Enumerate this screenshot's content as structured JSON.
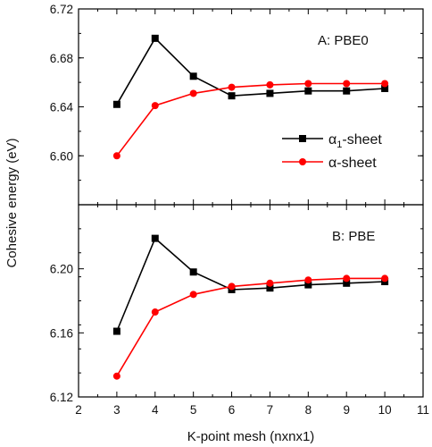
{
  "chart_data": [
    {
      "type": "line",
      "panel_label": "A: PBE0",
      "ylabel": "Cohesive energy (eV)",
      "xlabel": "K-point mesh (nxnx1)",
      "xlim": [
        2,
        11
      ],
      "ylim": [
        6.56,
        6.72
      ],
      "y_ticks": [
        "6.60",
        "6.64",
        "6.68",
        "6.72"
      ],
      "x": [
        3,
        4,
        5,
        6,
        7,
        8,
        9,
        10
      ],
      "series": [
        {
          "name": "α1-sheet",
          "name_base": "α",
          "name_sub": "1",
          "name_suffix": "-sheet",
          "color": "#000000",
          "marker": "square",
          "values": [
            6.642,
            6.696,
            6.665,
            6.649,
            6.651,
            6.653,
            6.653,
            6.655
          ]
        },
        {
          "name": "α-sheet",
          "name_base": "α",
          "name_sub": "",
          "name_suffix": "-sheet",
          "color": "#ff0000",
          "marker": "circle",
          "values": [
            6.6,
            6.641,
            6.651,
            6.656,
            6.658,
            6.659,
            6.659,
            6.659
          ]
        }
      ],
      "legend": "right"
    },
    {
      "type": "line",
      "panel_label": "B: PBE",
      "xlabel": "K-point mesh (nxnx1)",
      "xlim": [
        2,
        11
      ],
      "ylim": [
        6.12,
        6.24
      ],
      "y_ticks": [
        "6.12",
        "6.16",
        "6.20"
      ],
      "x_ticks": [
        "2",
        "3",
        "4",
        "5",
        "6",
        "7",
        "8",
        "9",
        "10",
        "11"
      ],
      "x": [
        3,
        4,
        5,
        6,
        7,
        8,
        9,
        10
      ],
      "series": [
        {
          "name": "α1-sheet",
          "color": "#000000",
          "marker": "square",
          "values": [
            6.161,
            6.219,
            6.198,
            6.187,
            6.188,
            6.19,
            6.191,
            6.192
          ]
        },
        {
          "name": "α-sheet",
          "color": "#ff0000",
          "marker": "circle",
          "values": [
            6.133,
            6.173,
            6.184,
            6.189,
            6.191,
            6.193,
            6.194,
            6.194
          ]
        }
      ]
    }
  ]
}
